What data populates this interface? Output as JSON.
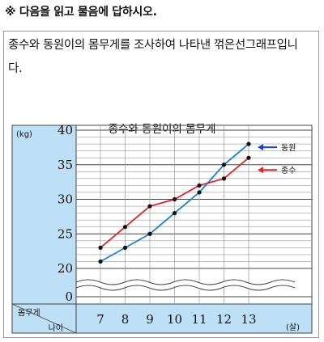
{
  "instruction": "※ 다음을 읽고 물음에 답하시오.",
  "question": "종수와 동원이의 몸무게를 조사하여 나타낸 꺾은선그래프입니다.",
  "colors": {
    "blue_series": "#1e7fd6",
    "red_series": "#e0242a",
    "axis_panel": "#bde0f7",
    "arrow_blue": "#1a3fe0"
  },
  "chart_data": {
    "type": "line",
    "title": "종수와 동원이의 몸무게",
    "ylabel": "(kg)",
    "xlabel": "(살)",
    "header_top": "몸무게",
    "header_bottom": "나이",
    "x": [
      7,
      8,
      9,
      10,
      11,
      12,
      13
    ],
    "x_labels": [
      "7",
      "8",
      "9",
      "10",
      "11",
      "12",
      "13"
    ],
    "y_tick_labels": [
      "40",
      "35",
      "30",
      "25",
      "20",
      "0"
    ],
    "y_ticks": [
      40,
      35,
      30,
      25,
      20,
      0
    ],
    "ylim": [
      20,
      40
    ],
    "axis_break": true,
    "grid": true,
    "series": [
      {
        "name": "동원",
        "color": "#1e7fd6",
        "values": [
          21,
          23,
          25,
          28,
          31,
          35,
          38
        ]
      },
      {
        "name": "종수",
        "color": "#e0242a",
        "values": [
          23,
          26,
          29,
          30,
          32,
          33,
          36
        ]
      }
    ]
  }
}
